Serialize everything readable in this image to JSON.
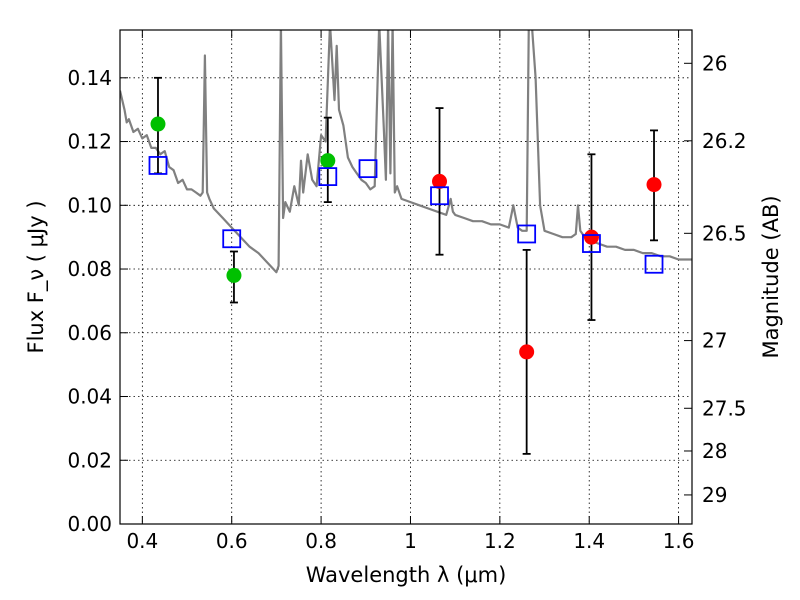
{
  "chart_data": {
    "type": "scatter",
    "xlabel": "Wavelength  λ (μm)",
    "ylabel": "Flux  F_ν ( μJy )",
    "ylabel_right": "Magnitude (AB)",
    "xlim": [
      0.35,
      1.63
    ],
    "ylim": [
      0.0,
      0.155
    ],
    "grid": true,
    "x_ticks": [
      {
        "value": 0.4,
        "label": "0.4"
      },
      {
        "value": 0.6,
        "label": "0.6"
      },
      {
        "value": 0.8,
        "label": "0.8"
      },
      {
        "value": 1.0,
        "label": "1"
      },
      {
        "value": 1.2,
        "label": "1.2"
      },
      {
        "value": 1.4,
        "label": "1.4"
      },
      {
        "value": 1.6,
        "label": "1.6"
      }
    ],
    "y_ticks": [
      {
        "value": 0.0,
        "label": "0.00"
      },
      {
        "value": 0.02,
        "label": "0.02"
      },
      {
        "value": 0.04,
        "label": "0.04"
      },
      {
        "value": 0.06,
        "label": "0.06"
      },
      {
        "value": 0.08,
        "label": "0.08"
      },
      {
        "value": 0.1,
        "label": "0.10"
      },
      {
        "value": 0.12,
        "label": "0.12"
      },
      {
        "value": 0.14,
        "label": "0.14"
      }
    ],
    "right_ticks": [
      {
        "value": 26,
        "label": "26"
      },
      {
        "value": 26.2,
        "label": "26.2"
      },
      {
        "value": 26.5,
        "label": "26.5"
      },
      {
        "value": 27,
        "label": "27"
      },
      {
        "value": 27.5,
        "label": "27.5"
      },
      {
        "value": 28,
        "label": "28"
      },
      {
        "value": 29,
        "label": "29"
      }
    ],
    "series": [
      {
        "kind": "line",
        "color": "#808080",
        "x": [
          0.35,
          0.36,
          0.365,
          0.37,
          0.38,
          0.39,
          0.4,
          0.41,
          0.42,
          0.43,
          0.44,
          0.45,
          0.46,
          0.47,
          0.48,
          0.49,
          0.5,
          0.51,
          0.52,
          0.53,
          0.535,
          0.54,
          0.545,
          0.55,
          0.56,
          0.58,
          0.6,
          0.62,
          0.64,
          0.66,
          0.68,
          0.7,
          0.705,
          0.71,
          0.715,
          0.72,
          0.73,
          0.74,
          0.75,
          0.755,
          0.76,
          0.77,
          0.78,
          0.79,
          0.8,
          0.81,
          0.82,
          0.83,
          0.835,
          0.84,
          0.85,
          0.86,
          0.87,
          0.88,
          0.89,
          0.9,
          0.91,
          0.92,
          0.93,
          0.94,
          0.945,
          0.95,
          0.955,
          0.96,
          0.965,
          0.97,
          0.98,
          1.0,
          1.02,
          1.04,
          1.06,
          1.08,
          1.09,
          1.095,
          1.1,
          1.12,
          1.14,
          1.16,
          1.18,
          1.2,
          1.22,
          1.23,
          1.24,
          1.25,
          1.26,
          1.265,
          1.27,
          1.28,
          1.29,
          1.3,
          1.32,
          1.34,
          1.36,
          1.37,
          1.375,
          1.38,
          1.39,
          1.4,
          1.42,
          1.44,
          1.46,
          1.48,
          1.5,
          1.52,
          1.54,
          1.56,
          1.58,
          1.6,
          1.63
        ],
        "y": [
          0.136,
          0.13,
          0.126,
          0.127,
          0.123,
          0.124,
          0.121,
          0.122,
          0.118,
          0.118,
          0.116,
          0.117,
          0.112,
          0.111,
          0.107,
          0.108,
          0.105,
          0.105,
          0.104,
          0.103,
          0.104,
          0.147,
          0.104,
          0.102,
          0.099,
          0.096,
          0.093,
          0.09,
          0.087,
          0.085,
          0.082,
          0.079,
          0.081,
          0.157,
          0.096,
          0.101,
          0.098,
          0.106,
          0.1,
          0.114,
          0.104,
          0.116,
          0.108,
          0.106,
          0.122,
          0.12,
          0.157,
          0.133,
          0.15,
          0.13,
          0.125,
          0.115,
          0.112,
          0.11,
          0.108,
          0.107,
          0.105,
          0.106,
          0.157,
          0.125,
          0.108,
          0.157,
          0.11,
          0.157,
          0.104,
          0.106,
          0.102,
          0.101,
          0.1,
          0.099,
          0.098,
          0.097,
          0.102,
          0.098,
          0.097,
          0.096,
          0.095,
          0.095,
          0.094,
          0.094,
          0.093,
          0.1,
          0.093,
          0.092,
          0.092,
          0.16,
          0.16,
          0.14,
          0.1,
          0.092,
          0.091,
          0.09,
          0.09,
          0.091,
          0.1,
          0.092,
          0.09,
          0.089,
          0.088,
          0.087,
          0.087,
          0.086,
          0.086,
          0.085,
          0.085,
          0.084,
          0.084,
          0.083,
          0.083
        ]
      },
      {
        "kind": "points",
        "marker": "circle",
        "color": "#00c000",
        "x": [
          0.435,
          0.605,
          0.815
        ],
        "y": [
          0.1255,
          0.078,
          0.114
        ]
      },
      {
        "kind": "points",
        "marker": "circle",
        "color": "#ff0000",
        "x": [
          1.065,
          1.26,
          1.405,
          1.545
        ],
        "y": [
          0.1075,
          0.054,
          0.09,
          0.1065
        ]
      },
      {
        "kind": "points",
        "marker": "open-square",
        "color": "#0000ff",
        "x": [
          0.435,
          0.6,
          0.815,
          0.905,
          1.065,
          1.26,
          1.405,
          1.545
        ],
        "y": [
          0.1125,
          0.0895,
          0.109,
          0.1115,
          0.103,
          0.091,
          0.088,
          0.0815
        ]
      }
    ],
    "error_bars": [
      {
        "x": 0.435,
        "low": 0.11,
        "high": 0.14
      },
      {
        "x": 0.605,
        "low": 0.0695,
        "high": 0.0855
      },
      {
        "x": 0.815,
        "low": 0.101,
        "high": 0.1275
      },
      {
        "x": 1.065,
        "low": 0.0845,
        "high": 0.1305
      },
      {
        "x": 1.26,
        "low": 0.022,
        "high": 0.086
      },
      {
        "x": 1.405,
        "low": 0.064,
        "high": 0.116
      },
      {
        "x": 1.545,
        "low": 0.089,
        "high": 0.1235
      }
    ]
  }
}
